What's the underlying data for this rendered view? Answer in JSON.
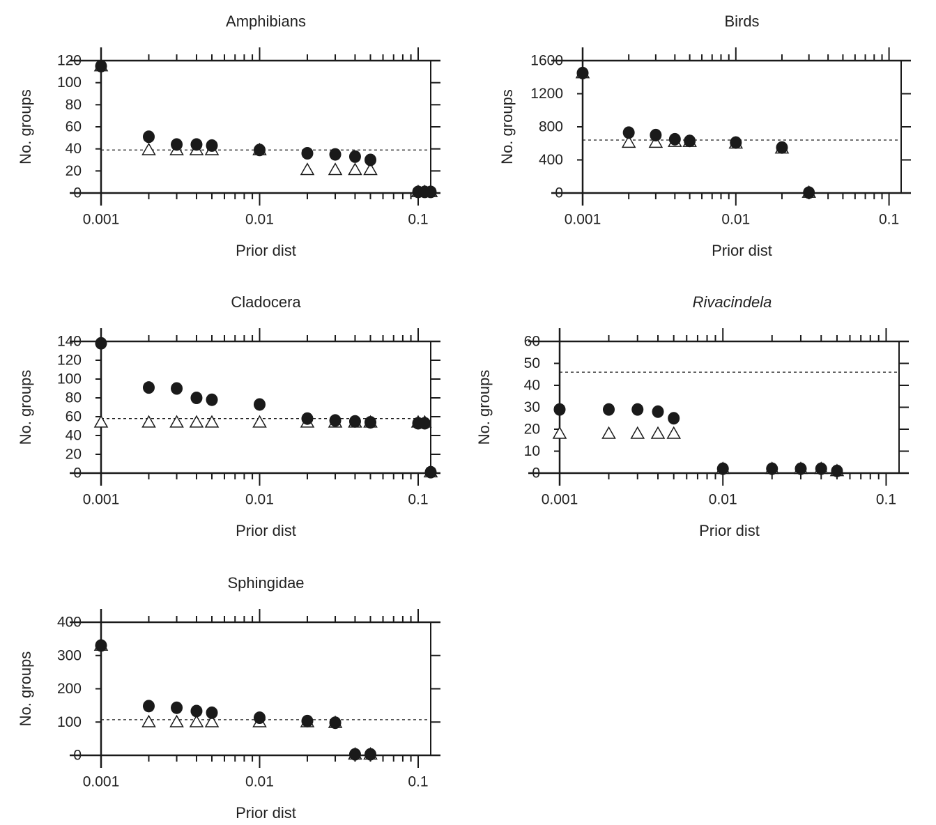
{
  "chart_data": [
    {
      "type": "scatter",
      "title": "Amphibians",
      "title_italic": false,
      "xlabel": "Prior dist",
      "ylabel": "No. groups",
      "xscale": "log",
      "xlim": [
        0.001,
        0.12
      ],
      "ylim": [
        0,
        120
      ],
      "xticks": [
        0.001,
        0.01,
        0.1
      ],
      "xtick_labels": [
        "0.001",
        "0.01",
        "0.1"
      ],
      "yticks": [
        0,
        20,
        40,
        60,
        80,
        100,
        120
      ],
      "ytick_labels": [
        "0",
        "20",
        "40",
        "60",
        "80",
        "100",
        "120"
      ],
      "reference_line": 39,
      "x": [
        0.001,
        0.002,
        0.003,
        0.004,
        0.005,
        0.01,
        0.02,
        0.03,
        0.04,
        0.05,
        0.1,
        0.11,
        0.12
      ],
      "series": [
        {
          "marker": "open-triangle",
          "values": [
            115,
            39,
            39,
            39,
            39,
            39,
            21,
            21,
            21,
            21,
            1,
            1,
            1
          ]
        },
        {
          "marker": "filled-circle",
          "values": [
            115,
            51,
            44,
            44,
            43,
            39,
            36,
            35,
            33,
            30,
            1,
            1,
            1
          ]
        }
      ]
    },
    {
      "type": "scatter",
      "title": "Birds",
      "title_italic": false,
      "xlabel": "Prior dist",
      "ylabel": "No. groups",
      "xscale": "log",
      "xlim": [
        0.001,
        0.12
      ],
      "ylim": [
        0,
        1600
      ],
      "xticks": [
        0.001,
        0.01,
        0.1
      ],
      "xtick_labels": [
        "0.001",
        "0.01",
        "0.1"
      ],
      "yticks": [
        0,
        400,
        800,
        1200,
        1600
      ],
      "ytick_labels": [
        "0",
        "400",
        "800",
        "1200",
        "1600"
      ],
      "reference_line": 640,
      "x": [
        0.001,
        0.002,
        0.003,
        0.004,
        0.005,
        0.01,
        0.02,
        0.03
      ],
      "series": [
        {
          "marker": "open-triangle",
          "values": [
            1450,
            610,
            610,
            620,
            620,
            600,
            540,
            5
          ]
        },
        {
          "marker": "filled-circle",
          "values": [
            1450,
            730,
            700,
            650,
            630,
            610,
            550,
            5
          ]
        }
      ]
    },
    {
      "type": "scatter",
      "title": "Cladocera",
      "title_italic": false,
      "xlabel": "Prior dist",
      "ylabel": "No. groups",
      "xscale": "log",
      "xlim": [
        0.001,
        0.12
      ],
      "ylim": [
        0,
        140
      ],
      "xticks": [
        0.001,
        0.01,
        0.1
      ],
      "xtick_labels": [
        "0.001",
        "0.01",
        "0.1"
      ],
      "yticks": [
        0,
        20,
        40,
        60,
        80,
        100,
        120,
        140
      ],
      "ytick_labels": [
        "0",
        "20",
        "40",
        "60",
        "80",
        "100",
        "120",
        "140"
      ],
      "reference_line": 58,
      "x": [
        0.001,
        0.002,
        0.003,
        0.004,
        0.005,
        0.01,
        0.02,
        0.03,
        0.04,
        0.05,
        0.1,
        0.11,
        0.12
      ],
      "series": [
        {
          "marker": "open-triangle",
          "values": [
            54,
            54,
            54,
            54,
            54,
            54,
            54,
            54,
            54,
            54,
            54,
            54,
            1
          ]
        },
        {
          "marker": "filled-circle",
          "values": [
            138,
            91,
            90,
            80,
            78,
            73,
            58,
            56,
            55,
            54,
            53,
            53,
            1
          ]
        }
      ]
    },
    {
      "type": "scatter",
      "title": "Rivacindela",
      "title_italic": true,
      "xlabel": "Prior dist",
      "ylabel": "No. groups",
      "xscale": "log",
      "xlim": [
        0.001,
        0.12
      ],
      "ylim": [
        0,
        60
      ],
      "xticks": [
        0.001,
        0.01,
        0.1
      ],
      "xtick_labels": [
        "0.001",
        "0.01",
        "0.1"
      ],
      "yticks": [
        0,
        10,
        20,
        30,
        40,
        50,
        60
      ],
      "ytick_labels": [
        "0",
        "10",
        "20",
        "30",
        "40",
        "50",
        "60"
      ],
      "reference_line": 46,
      "x": [
        0.001,
        0.002,
        0.003,
        0.004,
        0.005,
        0.01,
        0.02,
        0.03,
        0.04,
        0.05
      ],
      "series": [
        {
          "marker": "open-triangle",
          "values": [
            18,
            18,
            18,
            18,
            18,
            2,
            2,
            2,
            2,
            1
          ]
        },
        {
          "marker": "filled-circle",
          "values": [
            29,
            29,
            29,
            28,
            25,
            2,
            2,
            2,
            2,
            1
          ]
        }
      ]
    },
    {
      "type": "scatter",
      "title": "Sphingidae",
      "title_italic": false,
      "xlabel": "Prior dist",
      "ylabel": "No. groups",
      "xscale": "log",
      "xlim": [
        0.001,
        0.12
      ],
      "ylim": [
        0,
        400
      ],
      "xticks": [
        0.001,
        0.01,
        0.1
      ],
      "xtick_labels": [
        "0.001",
        "0.01",
        "0.1"
      ],
      "yticks": [
        0,
        100,
        200,
        300,
        400
      ],
      "ytick_labels": [
        "0",
        "100",
        "200",
        "300",
        "400"
      ],
      "reference_line": 107,
      "x": [
        0.001,
        0.002,
        0.003,
        0.004,
        0.005,
        0.01,
        0.02,
        0.03,
        0.04,
        0.05
      ],
      "series": [
        {
          "marker": "open-triangle",
          "values": [
            330,
            100,
            100,
            100,
            100,
            100,
            100,
            98,
            3,
            3
          ]
        },
        {
          "marker": "filled-circle",
          "values": [
            330,
            148,
            143,
            133,
            128,
            113,
            103,
            98,
            3,
            3
          ]
        }
      ]
    }
  ],
  "colors": {
    "ink": "#1a1a1a",
    "background": "#ffffff"
  }
}
